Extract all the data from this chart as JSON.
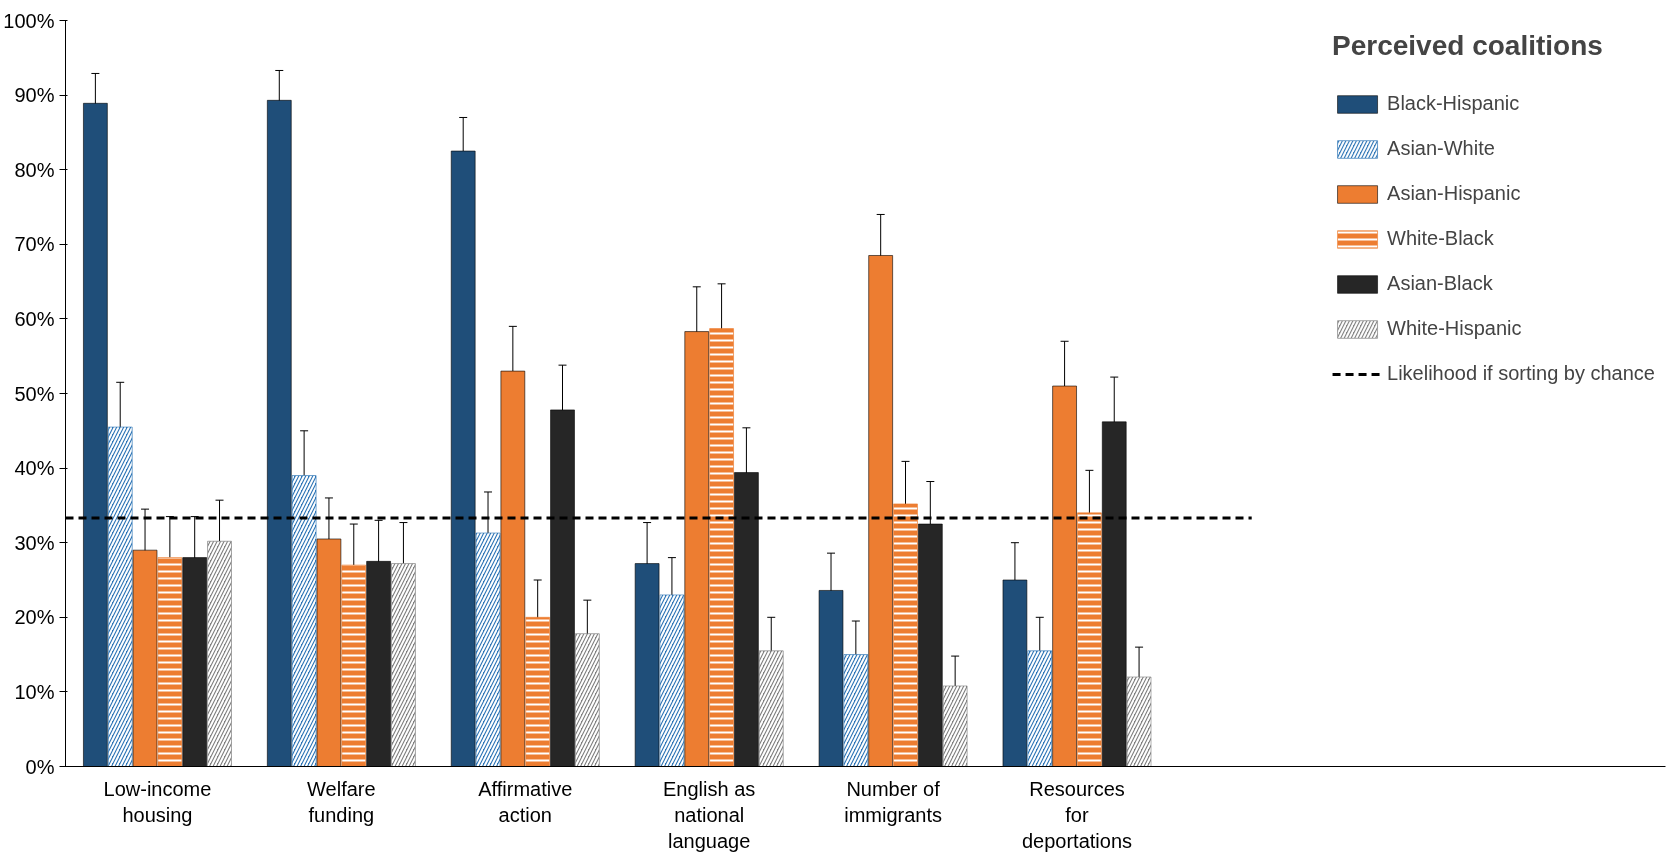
{
  "chart_data": {
    "type": "bar",
    "legend_title": "Perceived coalitions",
    "categories": [
      "Low-income housing",
      "Welfare funding",
      "Affirmative action",
      "English as national language",
      "Number of immigrants",
      "Resources for deportations"
    ],
    "series": [
      {
        "name": "Black-Hispanic",
        "color": "#1f4e79",
        "values": [
          88.9,
          89.3,
          82.5,
          27.2,
          23.6,
          25.0
        ],
        "errors": [
          4,
          4,
          4.5,
          5.5,
          5,
          5
        ]
      },
      {
        "name": "Asian-White",
        "color": "#2e75b6",
        "values": [
          45.5,
          39.0,
          31.3,
          23.0,
          15.0,
          15.5
        ],
        "errors": [
          6,
          6,
          5.5,
          5,
          4.5,
          4.5
        ]
      },
      {
        "name": "Asian-Hispanic",
        "color": "#ed7d31",
        "values": [
          29.0,
          30.5,
          53.0,
          58.3,
          68.5,
          51.0
        ],
        "errors": [
          5.5,
          5.5,
          6,
          6,
          5.5,
          6
        ]
      },
      {
        "name": "White-Black",
        "color": "#ed7d31",
        "values": [
          28.0,
          27.0,
          20.0,
          58.7,
          35.2,
          34.0
        ],
        "errors": [
          5.5,
          5.5,
          5,
          6,
          5.7,
          5.7
        ]
      },
      {
        "name": "Asian-Black",
        "color": "#262626",
        "values": [
          28.0,
          27.5,
          47.8,
          39.4,
          32.5,
          46.2
        ],
        "errors": [
          5.5,
          5.5,
          6,
          6,
          5.7,
          6
        ]
      },
      {
        "name": "White-Hispanic",
        "color": "#808080",
        "values": [
          30.2,
          27.2,
          17.8,
          15.5,
          10.8,
          12.0
        ],
        "errors": [
          5.5,
          5.5,
          4.5,
          4.5,
          4,
          4
        ]
      }
    ],
    "ylim": [
      0,
      100
    ],
    "yticks": [
      {
        "value": 0,
        "label": "0%"
      },
      {
        "value": 10,
        "label": "10%"
      },
      {
        "value": 20,
        "label": "20%"
      },
      {
        "value": 30,
        "label": "30%"
      },
      {
        "value": 40,
        "label": "40%"
      },
      {
        "value": 50,
        "label": "50%"
      },
      {
        "value": 60,
        "label": "60%"
      },
      {
        "value": 70,
        "label": "70%"
      },
      {
        "value": 80,
        "label": "80%"
      },
      {
        "value": 90,
        "label": "90%"
      },
      {
        "value": 100,
        "label": "100%"
      }
    ],
    "ref_lines": [
      {
        "axis": "y",
        "value": 33.3,
        "label": "Likelihood if sorting by chance",
        "color": "#000000",
        "line_style": "dashed"
      }
    ],
    "grid": false,
    "legend": "right"
  }
}
